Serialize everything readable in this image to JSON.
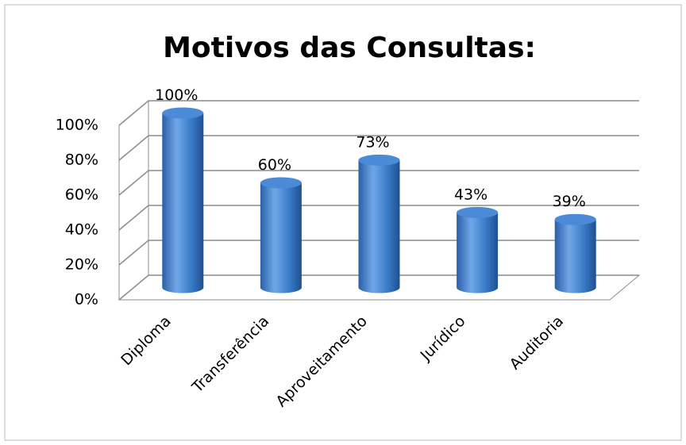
{
  "chart_data": {
    "type": "bar",
    "title": "Motivos das Consultas:",
    "categories": [
      "Diploma",
      "Transferência",
      "Aproveitamento",
      "Jurídico",
      "Auditoria"
    ],
    "values": [
      100,
      60,
      73,
      43,
      39
    ],
    "value_labels": [
      "100%",
      "60%",
      "73%",
      "43%",
      "39%"
    ],
    "color": "#3a7bc8",
    "ylim": [
      0,
      100
    ],
    "yticks": [
      {
        "value": 0,
        "label": "0%"
      },
      {
        "value": 20,
        "label": "20%"
      },
      {
        "value": 40,
        "label": "40%"
      },
      {
        "value": 60,
        "label": "60%"
      },
      {
        "value": 80,
        "label": "80%"
      },
      {
        "value": 100,
        "label": "100%"
      }
    ],
    "grid": true
  }
}
